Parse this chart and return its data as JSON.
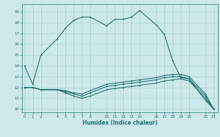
{
  "xlabel": "Humidex (Indice chaleur)",
  "bg_color": "#cce8e8",
  "grid_color": "#aacfcf",
  "line_color": "#1a7070",
  "line_main_x": [
    0,
    1,
    2,
    4,
    5,
    6,
    7,
    8,
    10,
    11,
    12,
    13,
    14,
    16,
    17,
    18,
    19,
    20,
    22,
    23
  ],
  "line_main_y": [
    14,
    12.3,
    15.0,
    16.5,
    17.5,
    18.2,
    18.5,
    18.5,
    17.7,
    18.3,
    18.3,
    18.5,
    19.1,
    17.8,
    16.9,
    14.5,
    12.9,
    12.8,
    10.8,
    10.0
  ],
  "line1_x": [
    0,
    1,
    2,
    4,
    5,
    6,
    7,
    8,
    10,
    11,
    12,
    13,
    14,
    16,
    17,
    18,
    19,
    20,
    22,
    23
  ],
  "line1_y": [
    12.0,
    12.0,
    11.8,
    11.8,
    11.5,
    11.2,
    11.0,
    11.2,
    11.8,
    11.9,
    12.0,
    12.1,
    12.2,
    12.4,
    12.6,
    12.7,
    12.8,
    12.6,
    11.0,
    10.0
  ],
  "line2_x": [
    0,
    1,
    2,
    4,
    5,
    6,
    7,
    8,
    10,
    11,
    12,
    13,
    14,
    16,
    17,
    18,
    19,
    20,
    22,
    23
  ],
  "line2_y": [
    12.0,
    12.0,
    11.8,
    11.8,
    11.6,
    11.4,
    11.2,
    11.5,
    12.1,
    12.2,
    12.3,
    12.4,
    12.5,
    12.7,
    12.9,
    13.0,
    13.0,
    12.8,
    11.2,
    10.0
  ],
  "line3_x": [
    0,
    1,
    2,
    4,
    5,
    6,
    7,
    8,
    10,
    11,
    12,
    13,
    14,
    16,
    17,
    18,
    19,
    20,
    22,
    23
  ],
  "line3_y": [
    12.0,
    12.0,
    11.8,
    11.8,
    11.7,
    11.5,
    11.4,
    11.7,
    12.3,
    12.4,
    12.5,
    12.6,
    12.7,
    12.9,
    13.1,
    13.2,
    13.2,
    13.0,
    11.4,
    10.0
  ],
  "xticks": [
    0,
    1,
    2,
    4,
    5,
    6,
    7,
    8,
    10,
    11,
    12,
    13,
    14,
    16,
    17,
    18,
    19,
    20,
    22,
    23
  ],
  "yticks": [
    10,
    11,
    12,
    13,
    14,
    15,
    16,
    17,
    18,
    19
  ],
  "xlim": [
    -0.3,
    23.5
  ],
  "ylim": [
    9.7,
    19.7
  ]
}
